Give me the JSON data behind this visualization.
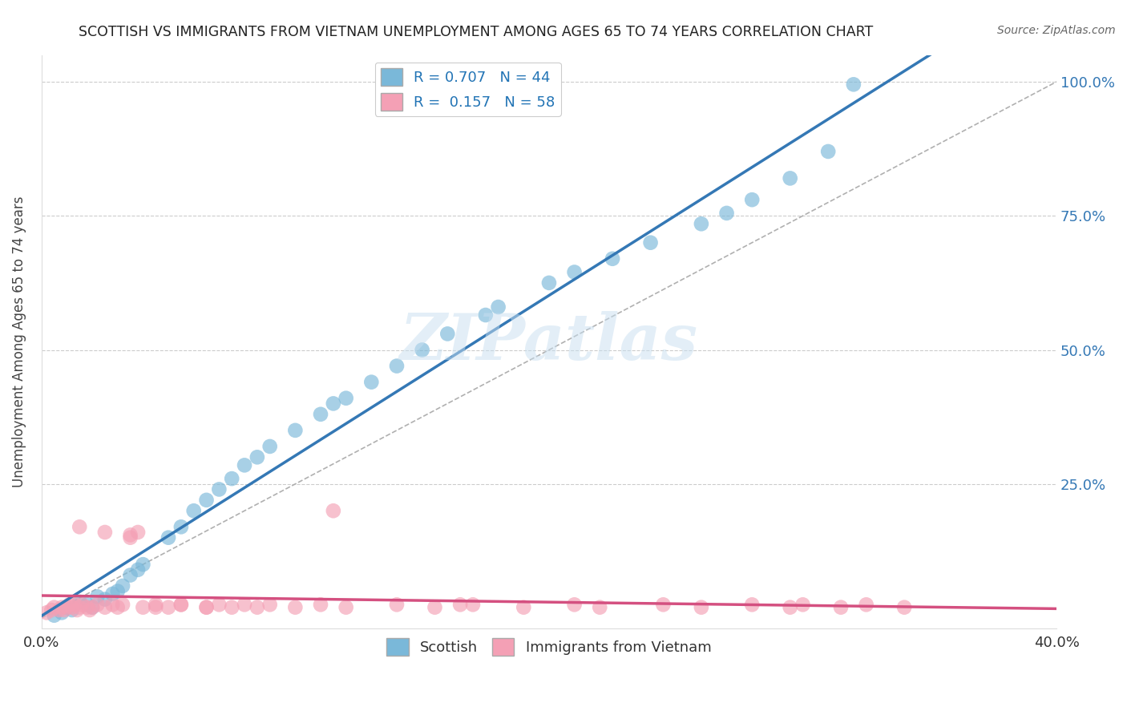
{
  "title": "SCOTTISH VS IMMIGRANTS FROM VIETNAM UNEMPLOYMENT AMONG AGES 65 TO 74 YEARS CORRELATION CHART",
  "source": "Source: ZipAtlas.com",
  "ylabel": "Unemployment Among Ages 65 to 74 years",
  "xlim": [
    0.0,
    0.4
  ],
  "ylim": [
    -0.02,
    1.05
  ],
  "xticks": [
    0.0,
    0.4
  ],
  "xticklabels": [
    "0.0%",
    "40.0%"
  ],
  "yticks": [
    0.25,
    0.5,
    0.75,
    1.0
  ],
  "yticklabels": [
    "25.0%",
    "50.0%",
    "75.0%",
    "100.0%"
  ],
  "scottish_color": "#7ab8d9",
  "vietnam_color": "#f4a0b5",
  "scottish_line_color": "#3478b5",
  "vietnam_line_color": "#d45080",
  "scottish_R": 0.707,
  "scottish_N": 44,
  "vietnam_R": 0.157,
  "vietnam_N": 58,
  "watermark": "ZIPatlas",
  "legend_labels": [
    "Scottish",
    "Immigrants from Vietnam"
  ],
  "scottish_x": [
    0.005,
    0.008,
    0.01,
    0.012,
    0.015,
    0.018,
    0.02,
    0.022,
    0.025,
    0.028,
    0.03,
    0.032,
    0.035,
    0.038,
    0.04,
    0.05,
    0.055,
    0.06,
    0.065,
    0.07,
    0.075,
    0.08,
    0.085,
    0.09,
    0.1,
    0.11,
    0.115,
    0.12,
    0.13,
    0.14,
    0.15,
    0.16,
    0.175,
    0.18,
    0.2,
    0.21,
    0.225,
    0.24,
    0.26,
    0.27,
    0.28,
    0.295,
    0.31,
    0.32
  ],
  "scottish_y": [
    0.005,
    0.01,
    0.02,
    0.015,
    0.03,
    0.025,
    0.02,
    0.04,
    0.035,
    0.045,
    0.05,
    0.06,
    0.08,
    0.09,
    0.1,
    0.15,
    0.17,
    0.2,
    0.22,
    0.24,
    0.26,
    0.285,
    0.3,
    0.32,
    0.35,
    0.38,
    0.4,
    0.41,
    0.44,
    0.47,
    0.5,
    0.53,
    0.565,
    0.58,
    0.625,
    0.645,
    0.67,
    0.7,
    0.735,
    0.755,
    0.78,
    0.82,
    0.87,
    0.995
  ],
  "vietnam_x": [
    0.002,
    0.004,
    0.005,
    0.007,
    0.008,
    0.009,
    0.01,
    0.011,
    0.012,
    0.013,
    0.014,
    0.015,
    0.016,
    0.018,
    0.019,
    0.02,
    0.022,
    0.025,
    0.028,
    0.03,
    0.032,
    0.035,
    0.038,
    0.04,
    0.045,
    0.05,
    0.055,
    0.065,
    0.07,
    0.075,
    0.08,
    0.085,
    0.09,
    0.1,
    0.11,
    0.12,
    0.14,
    0.155,
    0.17,
    0.19,
    0.21,
    0.22,
    0.245,
    0.26,
    0.28,
    0.295,
    0.3,
    0.315,
    0.325,
    0.34,
    0.015,
    0.025,
    0.035,
    0.045,
    0.055,
    0.065,
    0.115,
    0.165
  ],
  "vietnam_y": [
    0.01,
    0.015,
    0.02,
    0.015,
    0.02,
    0.015,
    0.02,
    0.025,
    0.02,
    0.025,
    0.015,
    0.02,
    0.025,
    0.02,
    0.015,
    0.02,
    0.025,
    0.02,
    0.025,
    0.02,
    0.025,
    0.15,
    0.16,
    0.02,
    0.025,
    0.02,
    0.025,
    0.02,
    0.025,
    0.02,
    0.025,
    0.02,
    0.025,
    0.02,
    0.025,
    0.02,
    0.025,
    0.02,
    0.025,
    0.02,
    0.025,
    0.02,
    0.025,
    0.02,
    0.025,
    0.02,
    0.025,
    0.02,
    0.025,
    0.02,
    0.17,
    0.16,
    0.155,
    0.02,
    0.025,
    0.02,
    0.2,
    0.025
  ]
}
